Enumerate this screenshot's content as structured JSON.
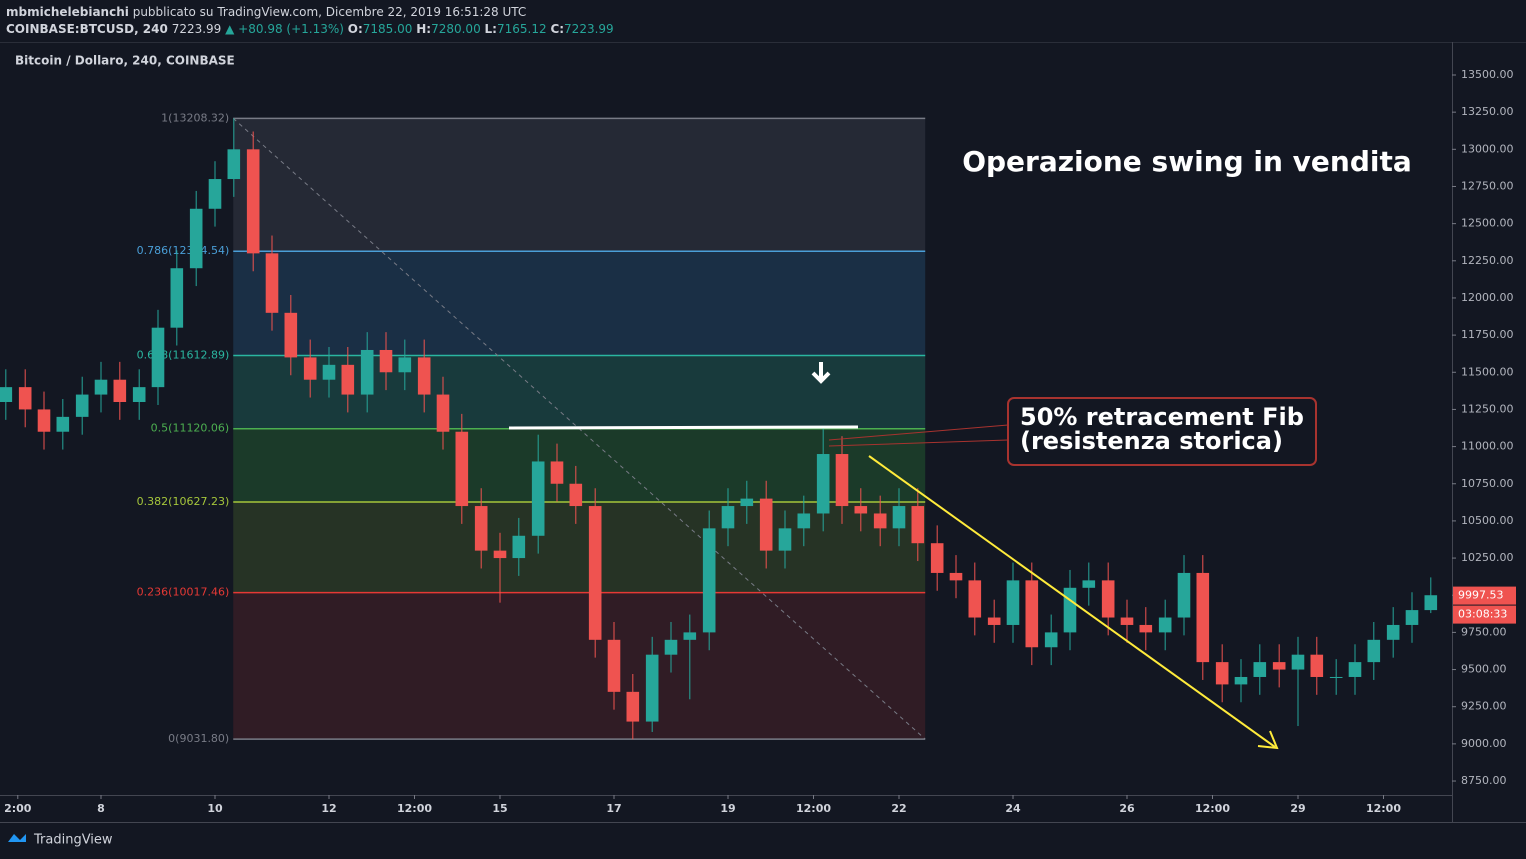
{
  "header": {
    "author": "mbmichelebianchi",
    "published": "pubblicato su TradingView.com, Dicembre 22, 2019 16:51:28 UTC",
    "symbol": "COINBASE:BTCUSD, 240",
    "price": "7223.99",
    "change": "▲ +80.98 (+1.13%)",
    "ohlc": [
      {
        "label": "O:",
        "value": "7185.00"
      },
      {
        "label": "H:",
        "value": "7280.00"
      },
      {
        "label": "L:",
        "value": "7165.12"
      },
      {
        "label": "C:",
        "value": "7223.99"
      }
    ]
  },
  "footer": {
    "brand": "TradingView"
  },
  "chart_data": {
    "type": "candlestick",
    "title": "Bitcoin / Dollaro, 240, COINBASE",
    "up_color": "#26a69a",
    "down_color": "#ef5350",
    "x": [
      6.33,
      6.67,
      7,
      7.33,
      7.67,
      8,
      8.33,
      8.67,
      9,
      9.33,
      9.67,
      10,
      10.33,
      10.67,
      11,
      11.33,
      11.67,
      12,
      12.33,
      12.67,
      13,
      13.33,
      13.67,
      14,
      14.33,
      14.67,
      15,
      15.33,
      15.67,
      16,
      16.33,
      16.67,
      17,
      17.33,
      17.67,
      18,
      18.33,
      18.67,
      19,
      19.33,
      19.67,
      20,
      20.33,
      20.67,
      21,
      21.33,
      21.67,
      22,
      22.33,
      22.67,
      23,
      23.33,
      23.67,
      24,
      24.33,
      24.67,
      25,
      25.33,
      25.67,
      26,
      26.33,
      26.67,
      27,
      27.33,
      27.67,
      28,
      28.33,
      28.67,
      29,
      29.33,
      29.67,
      30,
      30.33,
      30.67,
      31,
      31.33
    ],
    "open": [
      11300,
      11400,
      11250,
      11100,
      11200,
      11350,
      11450,
      11300,
      11400,
      11800,
      12200,
      12600,
      12800,
      13000,
      12300,
      11900,
      11600,
      11450,
      11550,
      11350,
      11650,
      11500,
      11600,
      11350,
      11100,
      10600,
      10300,
      10250,
      10400,
      10900,
      10750,
      10600,
      9700,
      9350,
      9150,
      9600,
      9700,
      9750,
      10450,
      10600,
      10650,
      10300,
      10450,
      10550,
      10950,
      10600,
      10550,
      10450,
      10600,
      10350,
      10150,
      10100,
      9850,
      9800,
      10100,
      9650,
      9750,
      10050,
      10100,
      9850,
      9800,
      9750,
      9850,
      10150,
      9550,
      9400,
      9450,
      9550,
      9500,
      9600,
      9450,
      9450,
      9550,
      9700,
      9800,
      9900
    ],
    "high": [
      11520,
      11520,
      11370,
      11320,
      11470,
      11570,
      11570,
      11520,
      11920,
      12320,
      12720,
      12920,
      13208,
      13120,
      12420,
      12020,
      11720,
      11670,
      11670,
      11770,
      11770,
      11720,
      11720,
      11470,
      11220,
      10720,
      10420,
      10520,
      11080,
      11020,
      10870,
      10720,
      9820,
      9470,
      9720,
      9820,
      9870,
      10570,
      10720,
      10770,
      10770,
      10570,
      10670,
      11120,
      11070,
      10720,
      10670,
      10720,
      10720,
      10470,
      10270,
      10220,
      9970,
      10220,
      10220,
      9870,
      10170,
      10220,
      10220,
      9970,
      9920,
      9970,
      10270,
      10270,
      9670,
      9570,
      9670,
      9670,
      9720,
      9720,
      9570,
      9670,
      9820,
      9920,
      10020,
      10120
    ],
    "low": [
      11180,
      11130,
      10980,
      10980,
      11080,
      11230,
      11180,
      11180,
      11280,
      11680,
      12080,
      12480,
      12680,
      12180,
      11780,
      11480,
      11330,
      11330,
      11230,
      11230,
      11380,
      11380,
      11230,
      10980,
      10480,
      10180,
      9950,
      10130,
      10280,
      10630,
      10480,
      9580,
      9230,
      9031,
      9080,
      9480,
      9300,
      9630,
      10330,
      10480,
      10180,
      10180,
      10330,
      10430,
      10480,
      10430,
      10330,
      10330,
      10230,
      10030,
      9980,
      9730,
      9680,
      9680,
      9530,
      9530,
      9630,
      9930,
      9730,
      9680,
      9630,
      9630,
      9730,
      9430,
      9280,
      9280,
      9330,
      9380,
      9120,
      9330,
      9330,
      9330,
      9430,
      9580,
      9680,
      9880
    ],
    "close": [
      11400,
      11250,
      11100,
      11200,
      11350,
      11450,
      11300,
      11400,
      11800,
      12200,
      12600,
      12800,
      13000,
      12300,
      11900,
      11600,
      11450,
      11550,
      11350,
      11650,
      11500,
      11600,
      11350,
      11100,
      10600,
      10300,
      10250,
      10400,
      10900,
      10750,
      10600,
      9700,
      9350,
      9150,
      9600,
      9700,
      9750,
      10450,
      10600,
      10650,
      10300,
      10450,
      10550,
      10950,
      10600,
      10550,
      10450,
      10600,
      10350,
      10150,
      10100,
      9850,
      9800,
      10100,
      9650,
      9750,
      10050,
      10100,
      9850,
      9800,
      9750,
      9850,
      10150,
      9550,
      9400,
      9450,
      9550,
      9500,
      9600,
      9450,
      9450,
      9550,
      9700,
      9800,
      9900,
      10000
    ],
    "xlim": [
      6.228,
      31.702
    ],
    "ylim": [
      8656,
      13722
    ],
    "xticks": [
      {
        "value": 6.54,
        "label": "2:00"
      },
      8,
      10,
      12,
      {
        "value": 13.5,
        "label": "12:00"
      },
      15,
      17,
      19,
      {
        "value": 20.5,
        "label": "12:00"
      },
      22,
      24,
      26,
      {
        "value": 27.5,
        "label": "12:00"
      },
      29,
      {
        "value": 30.5,
        "label": "12:00"
      }
    ],
    "yticks": [
      {
        "value": 8750,
        "label": "8750.00"
      },
      {
        "value": 9000,
        "label": "9000.00"
      },
      {
        "value": 9250,
        "label": "9250.00"
      },
      {
        "value": 9500,
        "label": "9500.00"
      },
      {
        "value": 9750,
        "label": "9750.00"
      },
      {
        "value": 10000,
        "label": "10000.00"
      },
      {
        "value": 10250,
        "label": "10250.00"
      },
      {
        "value": 10500,
        "label": "10500.00"
      },
      {
        "value": 10750,
        "label": "10750.00"
      },
      {
        "value": 11000,
        "label": "11000.00"
      },
      {
        "value": 11250,
        "label": "11250.00"
      },
      {
        "value": 11500,
        "label": "11500.00"
      },
      {
        "value": 11750,
        "label": "11750.00"
      },
      {
        "value": 12000,
        "label": "12000.00"
      },
      {
        "value": 12250,
        "label": "12250.00"
      },
      {
        "value": 12500,
        "label": "12500.00"
      },
      {
        "value": 12750,
        "label": "12750.00"
      },
      {
        "value": 13000,
        "label": "13000.00"
      },
      {
        "value": 13250,
        "label": "13250.00"
      },
      {
        "value": 13500,
        "label": "13500.00"
      }
    ],
    "fib": {
      "x_range": [
        10.32,
        22.46
      ],
      "levels": [
        {
          "label": "1(13208.32)",
          "price": 13208.32,
          "color": "#787b86"
        },
        {
          "label": "0.786(12314.54)",
          "price": 12314.54,
          "color": "#4a9fd8"
        },
        {
          "label": "0.618(11612.89)",
          "price": 11612.89,
          "color": "#2ab6a0"
        },
        {
          "label": "0.5(11120.06)",
          "price": 11120.06,
          "color": "#4caf50"
        },
        {
          "label": "0.382(10627.23)",
          "price": 10627.23,
          "color": "#a5c63b"
        },
        {
          "label": "0.236(10017.46)",
          "price": 10017.46,
          "color": "#e53935"
        },
        {
          "label": "0(9031.80)",
          "price": 9031.8,
          "color": "#787b86"
        }
      ],
      "zone_colors": [
        "#252935",
        "#1a2f45",
        "#183a3c",
        "#1b3a29",
        "#263325",
        "#301c25"
      ]
    },
    "headline": "Operazione swing in vendita",
    "callout": [
      "50% retracement Fib",
      "(resistenza storica)"
    ],
    "last_price": 9997.53,
    "countdown": "03:08:33"
  }
}
